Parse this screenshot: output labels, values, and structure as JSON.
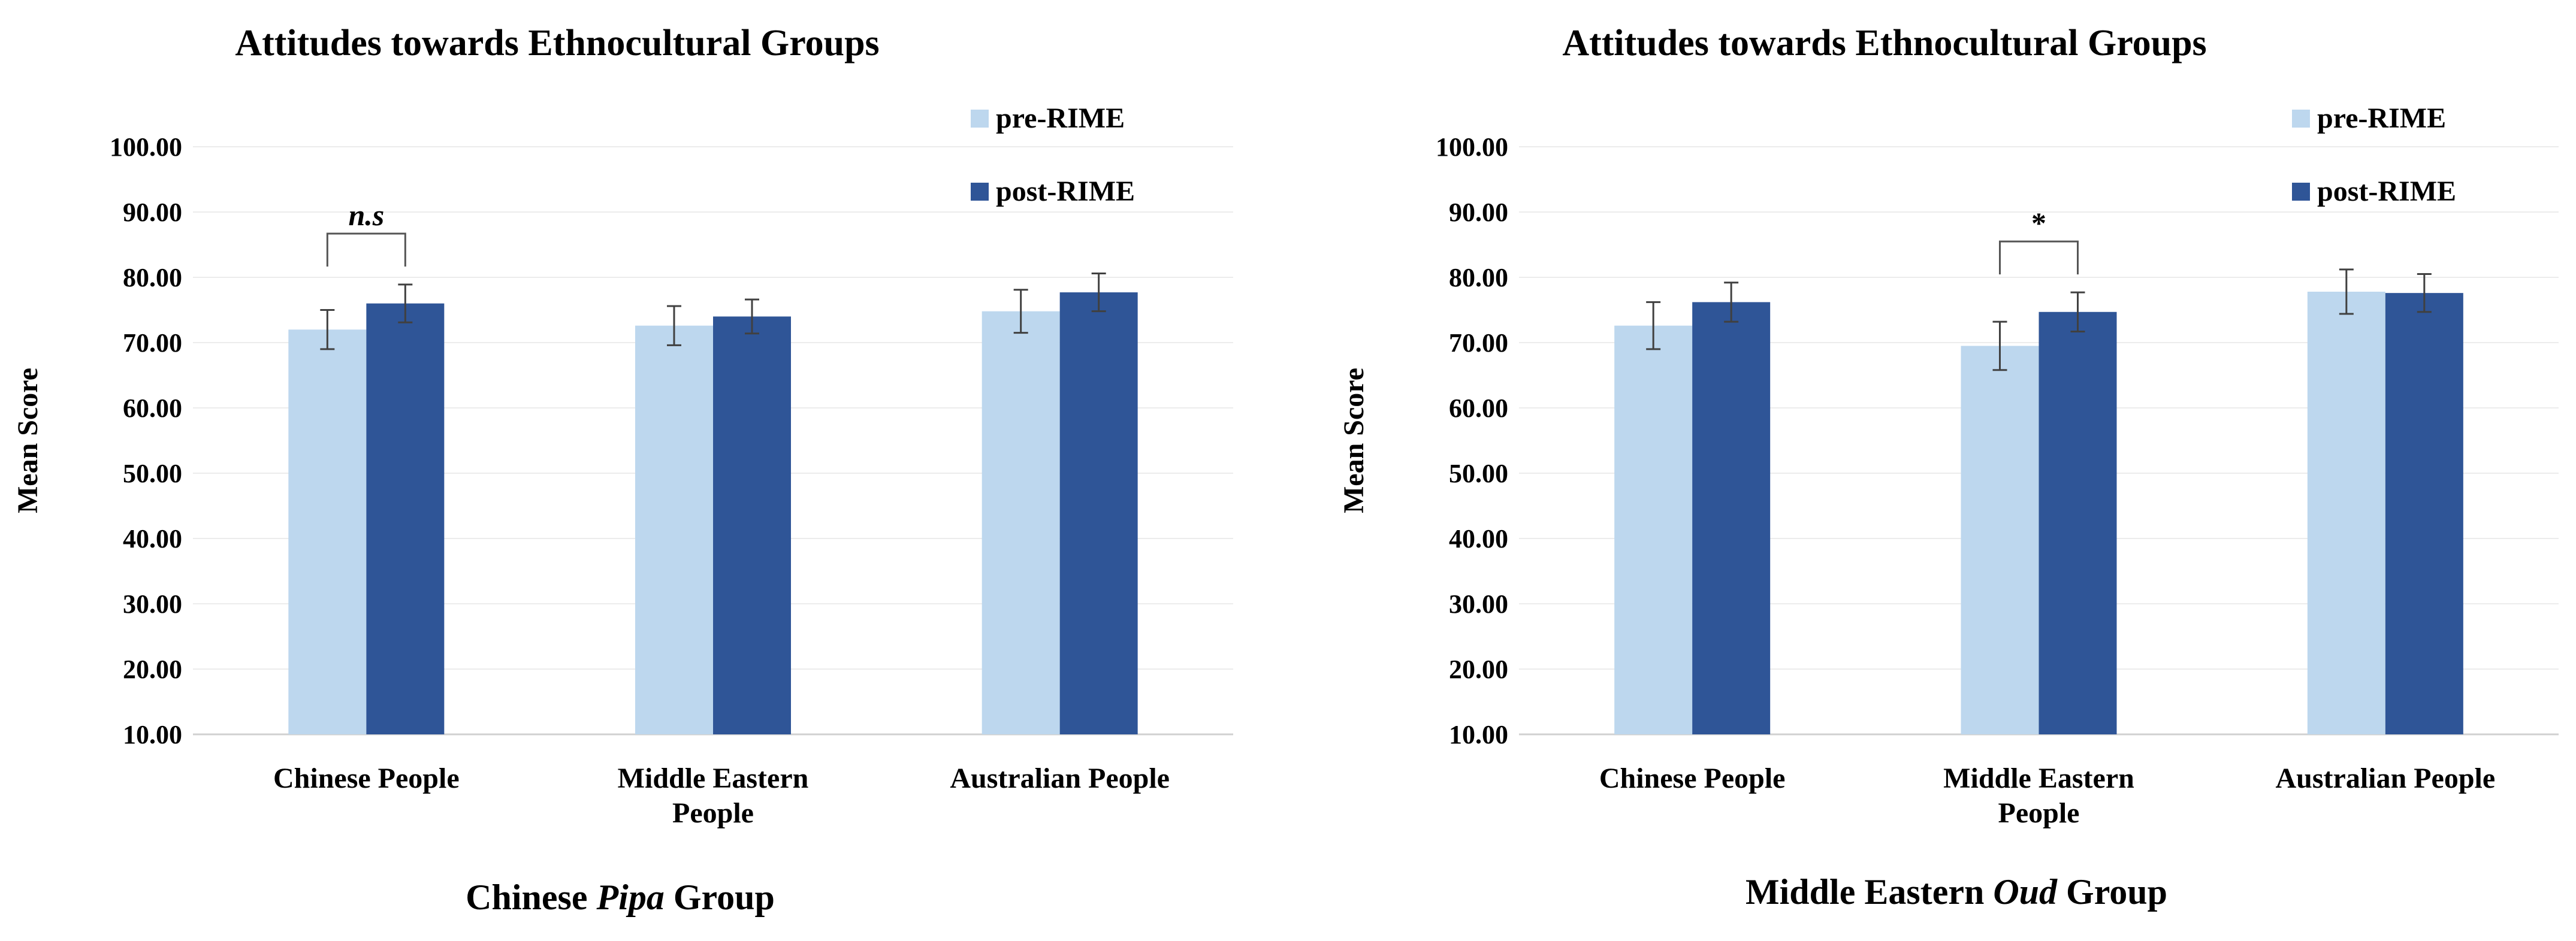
{
  "colors": {
    "pre": "#bdd7ee",
    "post": "#2f5597"
  },
  "chart_data": [
    {
      "type": "bar",
      "title": "Attitudes towards Ethnocultural Groups",
      "ylabel": "Mean Score",
      "xlabel": "",
      "ylim": [
        10,
        100
      ],
      "yticks": [
        "100.00",
        "90.00",
        "80.00",
        "70.00",
        "60.00",
        "50.00",
        "40.00",
        "30.00",
        "20.00",
        "10.00"
      ],
      "categories": [
        [
          "Chinese People"
        ],
        [
          "Middle Eastern",
          "People"
        ],
        [
          "Australian People"
        ]
      ],
      "series": [
        {
          "name": "pre-RIME",
          "values": [
            72.0,
            72.6,
            74.8
          ],
          "errors": [
            3.0,
            3.0,
            3.3
          ]
        },
        {
          "name": "post-RIME",
          "values": [
            76.0,
            74.0,
            77.7
          ],
          "errors": [
            2.9,
            2.6,
            2.9
          ]
        }
      ],
      "annotations": [
        {
          "text": "n.s",
          "italic": true,
          "category_index": 0
        }
      ],
      "caption": {
        "pre": "Chinese ",
        "italic": "Pipa",
        "post": " Group"
      }
    },
    {
      "type": "bar",
      "title": "Attitudes towards Ethnocultural Groups",
      "ylabel": "Mean Score",
      "xlabel": "",
      "ylim": [
        10,
        100
      ],
      "yticks": [
        "100.00",
        "90.00",
        "80.00",
        "70.00",
        "60.00",
        "50.00",
        "40.00",
        "30.00",
        "20.00",
        "10.00"
      ],
      "categories": [
        [
          "Chinese People"
        ],
        [
          "Middle Eastern",
          "People"
        ],
        [
          "Australian People"
        ]
      ],
      "series": [
        {
          "name": "pre-RIME",
          "values": [
            72.6,
            69.5,
            77.8
          ],
          "errors": [
            3.6,
            3.7,
            3.4
          ]
        },
        {
          "name": "post-RIME",
          "values": [
            76.2,
            74.7,
            77.6
          ],
          "errors": [
            3.0,
            3.0,
            2.9
          ]
        }
      ],
      "annotations": [
        {
          "text": "*",
          "italic": false,
          "category_index": 1
        }
      ],
      "caption": {
        "pre": "Middle Eastern ",
        "italic": "Oud",
        "post": " Group"
      }
    }
  ]
}
